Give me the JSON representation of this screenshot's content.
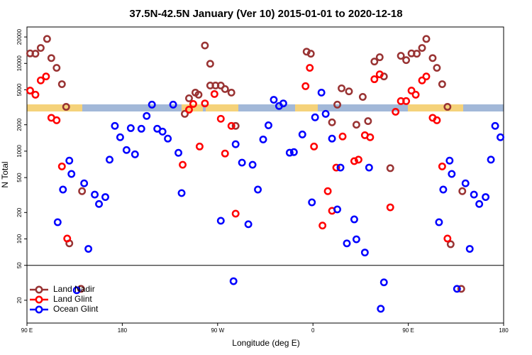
{
  "chart_data": {
    "type": "scatter",
    "title": "37.5N-42.5N January (Ver 10)   2015-01-01 to 2020-12-18",
    "x_label": "Longitude (deg E)",
    "y_label": "N Total",
    "xlim": [
      90,
      540
    ],
    "xticks": [
      {
        "value": 90,
        "label": "90 E"
      },
      180,
      {
        "value": 270,
        "label": "90 W"
      },
      {
        "value": 360,
        "label": "0"
      },
      {
        "value": 450,
        "label": "90 E"
      },
      {
        "value": 540,
        "label": "180"
      }
    ],
    "ylim": [
      11,
      26000
    ],
    "log_y": true,
    "yticks": [
      20,
      50,
      100,
      200,
      500,
      1000,
      2000,
      5000,
      10000,
      20000
    ],
    "panel_break": 50,
    "legend": "bottom-left",
    "series": [
      {
        "name": "Land Nadir",
        "color": "#993333",
        "x": [
          93,
          98,
          103,
          109,
          113,
          118,
          123,
          127,
          130,
          142,
          141,
          239,
          243,
          249,
          252,
          258,
          263,
          263,
          268,
          273,
          277,
          283,
          287,
          354,
          358,
          378,
          383,
          387,
          394,
          401,
          407,
          412,
          418,
          423,
          427,
          433,
          443,
          448,
          453,
          458,
          463,
          467,
          473,
          477,
          482,
          487,
          490,
          501,
          500
        ],
        "values": [
          13000,
          12900,
          15000,
          19000,
          11500,
          8900,
          5800,
          3200,
          89,
          350,
          27,
          2660,
          4000,
          4650,
          4400,
          16000,
          9900,
          5600,
          5600,
          5600,
          5100,
          4650,
          1940,
          13600,
          12900,
          2130,
          3390,
          5200,
          4800,
          2000,
          4150,
          2200,
          10500,
          11750,
          7100,
          640,
          12200,
          10900,
          13000,
          12900,
          15000,
          19000,
          11500,
          8900,
          5800,
          3200,
          87,
          350,
          27
        ]
      },
      {
        "name": "Land Glint",
        "color": "#ff0000",
        "x": [
          93,
          98,
          103,
          108,
          113,
          118,
          123,
          128,
          237,
          243,
          247,
          253,
          258,
          267,
          273,
          277,
          283,
          287,
          353,
          357,
          361,
          369,
          374,
          378,
          382,
          388,
          399,
          403,
          409,
          414,
          418,
          423,
          433,
          438,
          443,
          448,
          453,
          457,
          463,
          467,
          473,
          477,
          482,
          487
        ],
        "values": [
          4900,
          4400,
          6400,
          7100,
          2400,
          2250,
          670,
          101,
          700,
          2970,
          3450,
          1130,
          3500,
          4480,
          2340,
          940,
          1940,
          194,
          5500,
          8900,
          1130,
          142,
          350,
          209,
          650,
          1470,
          770,
          800,
          1520,
          1440,
          6600,
          7500,
          229,
          2810,
          3720,
          3720,
          4900,
          4400,
          6400,
          7100,
          2400,
          2250,
          670,
          101
        ]
      },
      {
        "name": "Ocean Glint",
        "color": "#0000ff",
        "x": [
          119,
          124,
          130,
          132,
          137,
          144,
          148,
          154,
          158,
          164,
          168,
          173,
          178,
          184,
          188,
          192,
          198,
          203,
          208,
          213,
          218,
          223,
          228,
          233,
          236,
          273,
          285,
          287,
          293,
          299,
          303,
          308,
          313,
          318,
          323,
          328,
          332,
          338,
          342,
          350,
          359,
          362,
          368,
          372,
          378,
          383,
          386,
          392,
          399,
          401,
          409,
          413,
          424,
          427,
          479,
          483,
          489,
          491,
          496,
          504,
          508,
          512,
          517,
          523,
          528,
          532,
          537
        ],
        "values": [
          155,
          365,
          780,
          550,
          26,
          430,
          77,
          320,
          250,
          300,
          800,
          1940,
          1440,
          1030,
          1830,
          920,
          1800,
          2520,
          3390,
          1800,
          1670,
          1390,
          3390,
          957,
          333,
          161,
          33,
          1200,
          740,
          147,
          700,
          365,
          1360,
          1970,
          3850,
          3270,
          3500,
          960,
          975,
          1550,
          261,
          2430,
          4650,
          2660,
          1390,
          217,
          650,
          89,
          167,
          99,
          70,
          650,
          16,
          32,
          155,
          365,
          780,
          550,
          27,
          430,
          77,
          320,
          250,
          300,
          800,
          1940,
          1440
        ]
      }
    ]
  }
}
